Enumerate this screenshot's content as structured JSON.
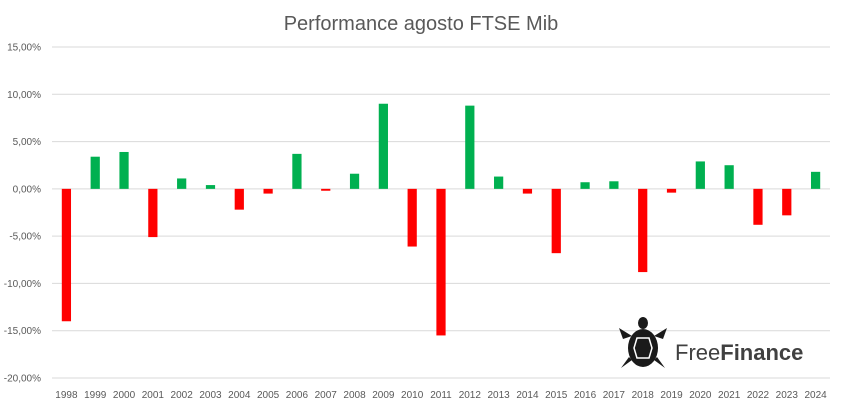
{
  "chart_data": {
    "type": "bar",
    "title": "Performance agosto FTSE Mib",
    "xlabel": "",
    "ylabel": "",
    "ylim": [
      -0.2,
      0.15
    ],
    "ytick_values": [
      0.15,
      0.1,
      0.05,
      0.0,
      -0.05,
      -0.1,
      -0.15,
      -0.2
    ],
    "ytick_labels": [
      "15,00%",
      "10,00%",
      "5,00%",
      "0,00%",
      "-5,00%",
      "-10,00%",
      "-15,00%",
      "-20,00%"
    ],
    "categories": [
      "1998",
      "1999",
      "2000",
      "2001",
      "2002",
      "2003",
      "2004",
      "2005",
      "2006",
      "2007",
      "2008",
      "2009",
      "2010",
      "2011",
      "2012",
      "2013",
      "2014",
      "2015",
      "2016",
      "2017",
      "2018",
      "2019",
      "2020",
      "2021",
      "2022",
      "2023",
      "2024"
    ],
    "values": [
      -0.14,
      0.034,
      0.039,
      -0.051,
      0.011,
      0.004,
      -0.022,
      -0.005,
      0.037,
      -0.002,
      0.016,
      0.09,
      -0.061,
      -0.155,
      0.088,
      0.013,
      -0.005,
      -0.068,
      0.007,
      0.008,
      -0.088,
      -0.004,
      0.029,
      0.025,
      -0.038,
      -0.028,
      0.018
    ],
    "grid": true,
    "legend": "none",
    "positive_color": "#00b050",
    "negative_color": "#ff0000"
  },
  "logo": {
    "text_plain": "Free",
    "text_bold": "Finance",
    "icon": "turtle-icon"
  }
}
